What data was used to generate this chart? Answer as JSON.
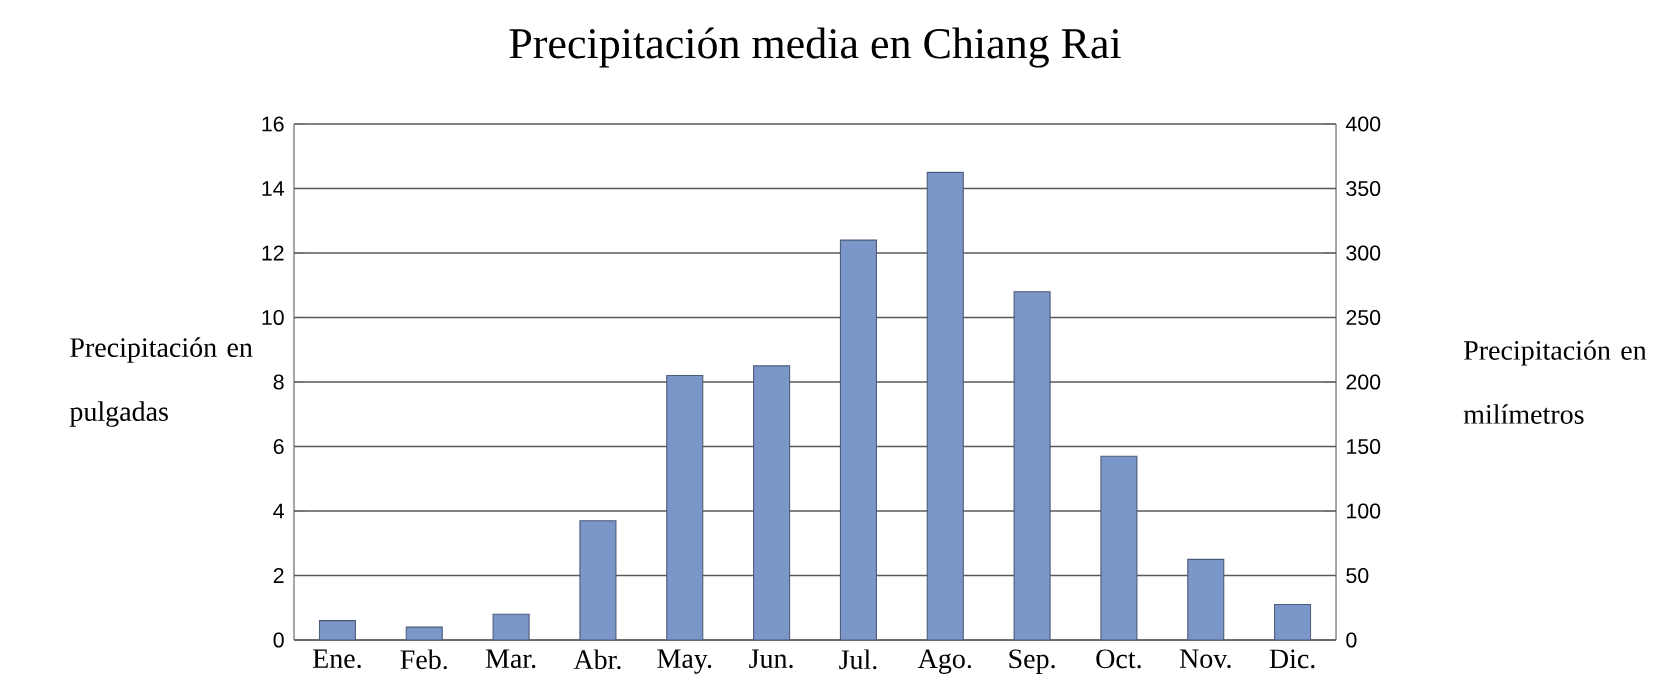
{
  "chart_data": {
    "type": "bar",
    "title": "Precipitación media en Chiang Rai",
    "ylabel": "Precipitación en pulgadas",
    "y2label": "Precipitación en milímetros",
    "categories": [
      "Ene.",
      "Feb.",
      "Mar.",
      "Abr.",
      "May.",
      "Jun.",
      "Jul.",
      "Ago.",
      "Sep.",
      "Oct.",
      "Nov.",
      "Dic."
    ],
    "values": [
      0.6,
      0.4,
      0.8,
      3.7,
      8.2,
      8.5,
      12.4,
      14.5,
      10.8,
      5.7,
      2.5,
      1.1
    ],
    "color": "#7b96c8",
    "ylim": [
      0,
      16
    ],
    "yticks": [
      0,
      2,
      4,
      6,
      8,
      10,
      12,
      14,
      16
    ],
    "y2lim": [
      0,
      400
    ],
    "y2ticks": [
      0,
      50,
      100,
      150,
      200,
      250,
      300,
      350,
      400
    ],
    "grid": "y"
  }
}
